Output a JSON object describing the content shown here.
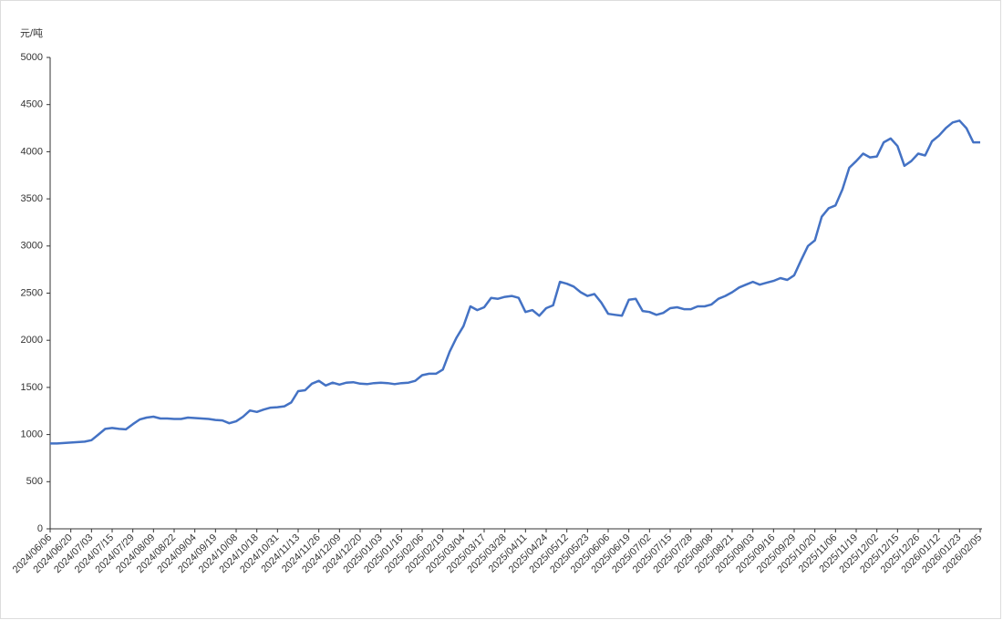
{
  "chart_data": {
    "type": "line",
    "y_unit": "元/吨",
    "color": "#4472c4",
    "categories": [
      "2024/06/06",
      null,
      null,
      "2024/06/20",
      null,
      null,
      "2024/07/03",
      null,
      null,
      "2024/07/15",
      null,
      null,
      "2024/07/29",
      null,
      null,
      "2024/08/09",
      null,
      null,
      "2024/08/22",
      null,
      null,
      "2024/09/04",
      null,
      null,
      "2024/09/19",
      null,
      null,
      "2024/10/08",
      null,
      null,
      "2024/10/18",
      null,
      null,
      "2024/10/31",
      null,
      null,
      "2024/11/13",
      null,
      null,
      "2024/11/26",
      null,
      null,
      "2024/12/09",
      null,
      null,
      "2024/12/20",
      null,
      null,
      "2025/01/03",
      null,
      null,
      "2025/01/16",
      null,
      null,
      "2025/02/06",
      null,
      null,
      "2025/02/19",
      null,
      null,
      "2025/03/04",
      null,
      null,
      "2025/03/17",
      null,
      null,
      "2025/03/28",
      null,
      null,
      "2025/04/11",
      null,
      null,
      "2025/04/24",
      null,
      null,
      "2025/05/12",
      null,
      null,
      "2025/05/23",
      null,
      null,
      "2025/06/06",
      null,
      null,
      "2025/06/19",
      null,
      null,
      "2025/07/02",
      null,
      null,
      "2025/07/15",
      null,
      null,
      "2025/07/28",
      null,
      null,
      "2025/08/08",
      null,
      null,
      "2025/08/21",
      null,
      null,
      "2025/09/03",
      null,
      null,
      "2025/09/16",
      null,
      null,
      "2025/09/29",
      null,
      null,
      "2025/10/20",
      null,
      null,
      "2025/11/06",
      null,
      null,
      "2025/11/19",
      null,
      null,
      "2025/12/02",
      null,
      null,
      "2025/12/15",
      null,
      null,
      "2025/12/26",
      null,
      null,
      "2026/01/12",
      null,
      null,
      "2026/01/23",
      null,
      null,
      "2026/02/05"
    ],
    "values": [
      905,
      905,
      910,
      915,
      920,
      925,
      940,
      1000,
      1060,
      1070,
      1060,
      1055,
      1110,
      1160,
      1180,
      1190,
      1170,
      1170,
      1165,
      1165,
      1180,
      1175,
      1170,
      1165,
      1155,
      1150,
      1120,
      1140,
      1190,
      1255,
      1240,
      1265,
      1285,
      1290,
      1300,
      1340,
      1460,
      1470,
      1540,
      1570,
      1520,
      1550,
      1530,
      1550,
      1555,
      1540,
      1535,
      1545,
      1550,
      1545,
      1535,
      1545,
      1550,
      1570,
      1630,
      1645,
      1645,
      1690,
      1880,
      2030,
      2150,
      2360,
      2320,
      2350,
      2450,
      2440,
      2460,
      2470,
      2450,
      2300,
      2320,
      2260,
      2340,
      2370,
      2620,
      2600,
      2570,
      2510,
      2470,
      2490,
      2400,
      2280,
      2270,
      2260,
      2430,
      2440,
      2310,
      2300,
      2270,
      2290,
      2340,
      2350,
      2330,
      2330,
      2360,
      2360,
      2380,
      2440,
      2470,
      2510,
      2560,
      2590,
      2620,
      2590,
      2610,
      2630,
      2660,
      2640,
      2690,
      2850,
      3000,
      3060,
      3310,
      3400,
      3430,
      3600,
      3830,
      3900,
      3980,
      3940,
      3950,
      4100,
      4140,
      4060,
      3850,
      3900,
      3980,
      3960,
      4110,
      4170,
      4250,
      4310,
      4330,
      4250,
      4100,
      4100
    ],
    "ylim": [
      0,
      5000
    ],
    "yticks": [
      0,
      500,
      1000,
      1500,
      2000,
      2500,
      3000,
      3500,
      4000,
      4500,
      5000
    ]
  }
}
